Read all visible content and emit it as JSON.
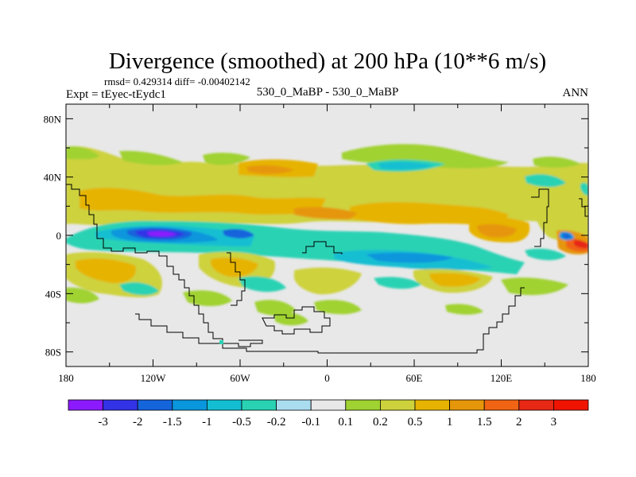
{
  "chart_data": {
    "type": "contour-map",
    "title": "Divergence (smoothed) at 200 hPa (10**6 m/s)",
    "stats": "rmsd= 0.429314 diff= -0.00402142",
    "experiment": "Expt = tEyec-tEydc1",
    "comparison": "530_0_MaBP - 530_0_MaBP",
    "season": "ANN",
    "lon_range": [
      -180,
      180
    ],
    "lat_range": [
      -90,
      90
    ],
    "x_ticks": [
      {
        "value": -180,
        "label": "180"
      },
      {
        "value": -120,
        "label": "120W"
      },
      {
        "value": -60,
        "label": "60W"
      },
      {
        "value": 0,
        "label": "0"
      },
      {
        "value": 60,
        "label": "60E"
      },
      {
        "value": 120,
        "label": "120E"
      },
      {
        "value": 180,
        "label": "180"
      }
    ],
    "y_ticks": [
      {
        "value": 80,
        "label": "80N"
      },
      {
        "value": 40,
        "label": "40N"
      },
      {
        "value": 0,
        "label": "0"
      },
      {
        "value": -40,
        "label": "40S"
      },
      {
        "value": -80,
        "label": "80S"
      }
    ],
    "colorbar": {
      "labels": [
        "-3",
        "-2",
        "-1.5",
        "-1",
        "-0.5",
        "-0.2",
        "-0.1",
        "0.1",
        "0.2",
        "0.5",
        "1",
        "1.5",
        "2",
        "3"
      ],
      "colors": [
        "#8c1aff",
        "#3232e6",
        "#1464dc",
        "#0a96dc",
        "#14bed2",
        "#2ad2b4",
        "#aadcf0",
        "#e8e8e8",
        "#a0d232",
        "#cdd23c",
        "#e6b400",
        "#e6960a",
        "#f06414",
        "#e62814",
        "#f01400"
      ]
    },
    "features": [
      {
        "name": "strong convergence, central Pacific",
        "lon": -128,
        "lat": 0,
        "value": -2.5
      },
      {
        "name": "divergence, Indian Ocean",
        "lon": 112,
        "lat": 2,
        "value": 1.5
      },
      {
        "name": "divergence, eastern Pacific",
        "lon": 172,
        "lat": -10,
        "value": 2
      }
    ]
  }
}
